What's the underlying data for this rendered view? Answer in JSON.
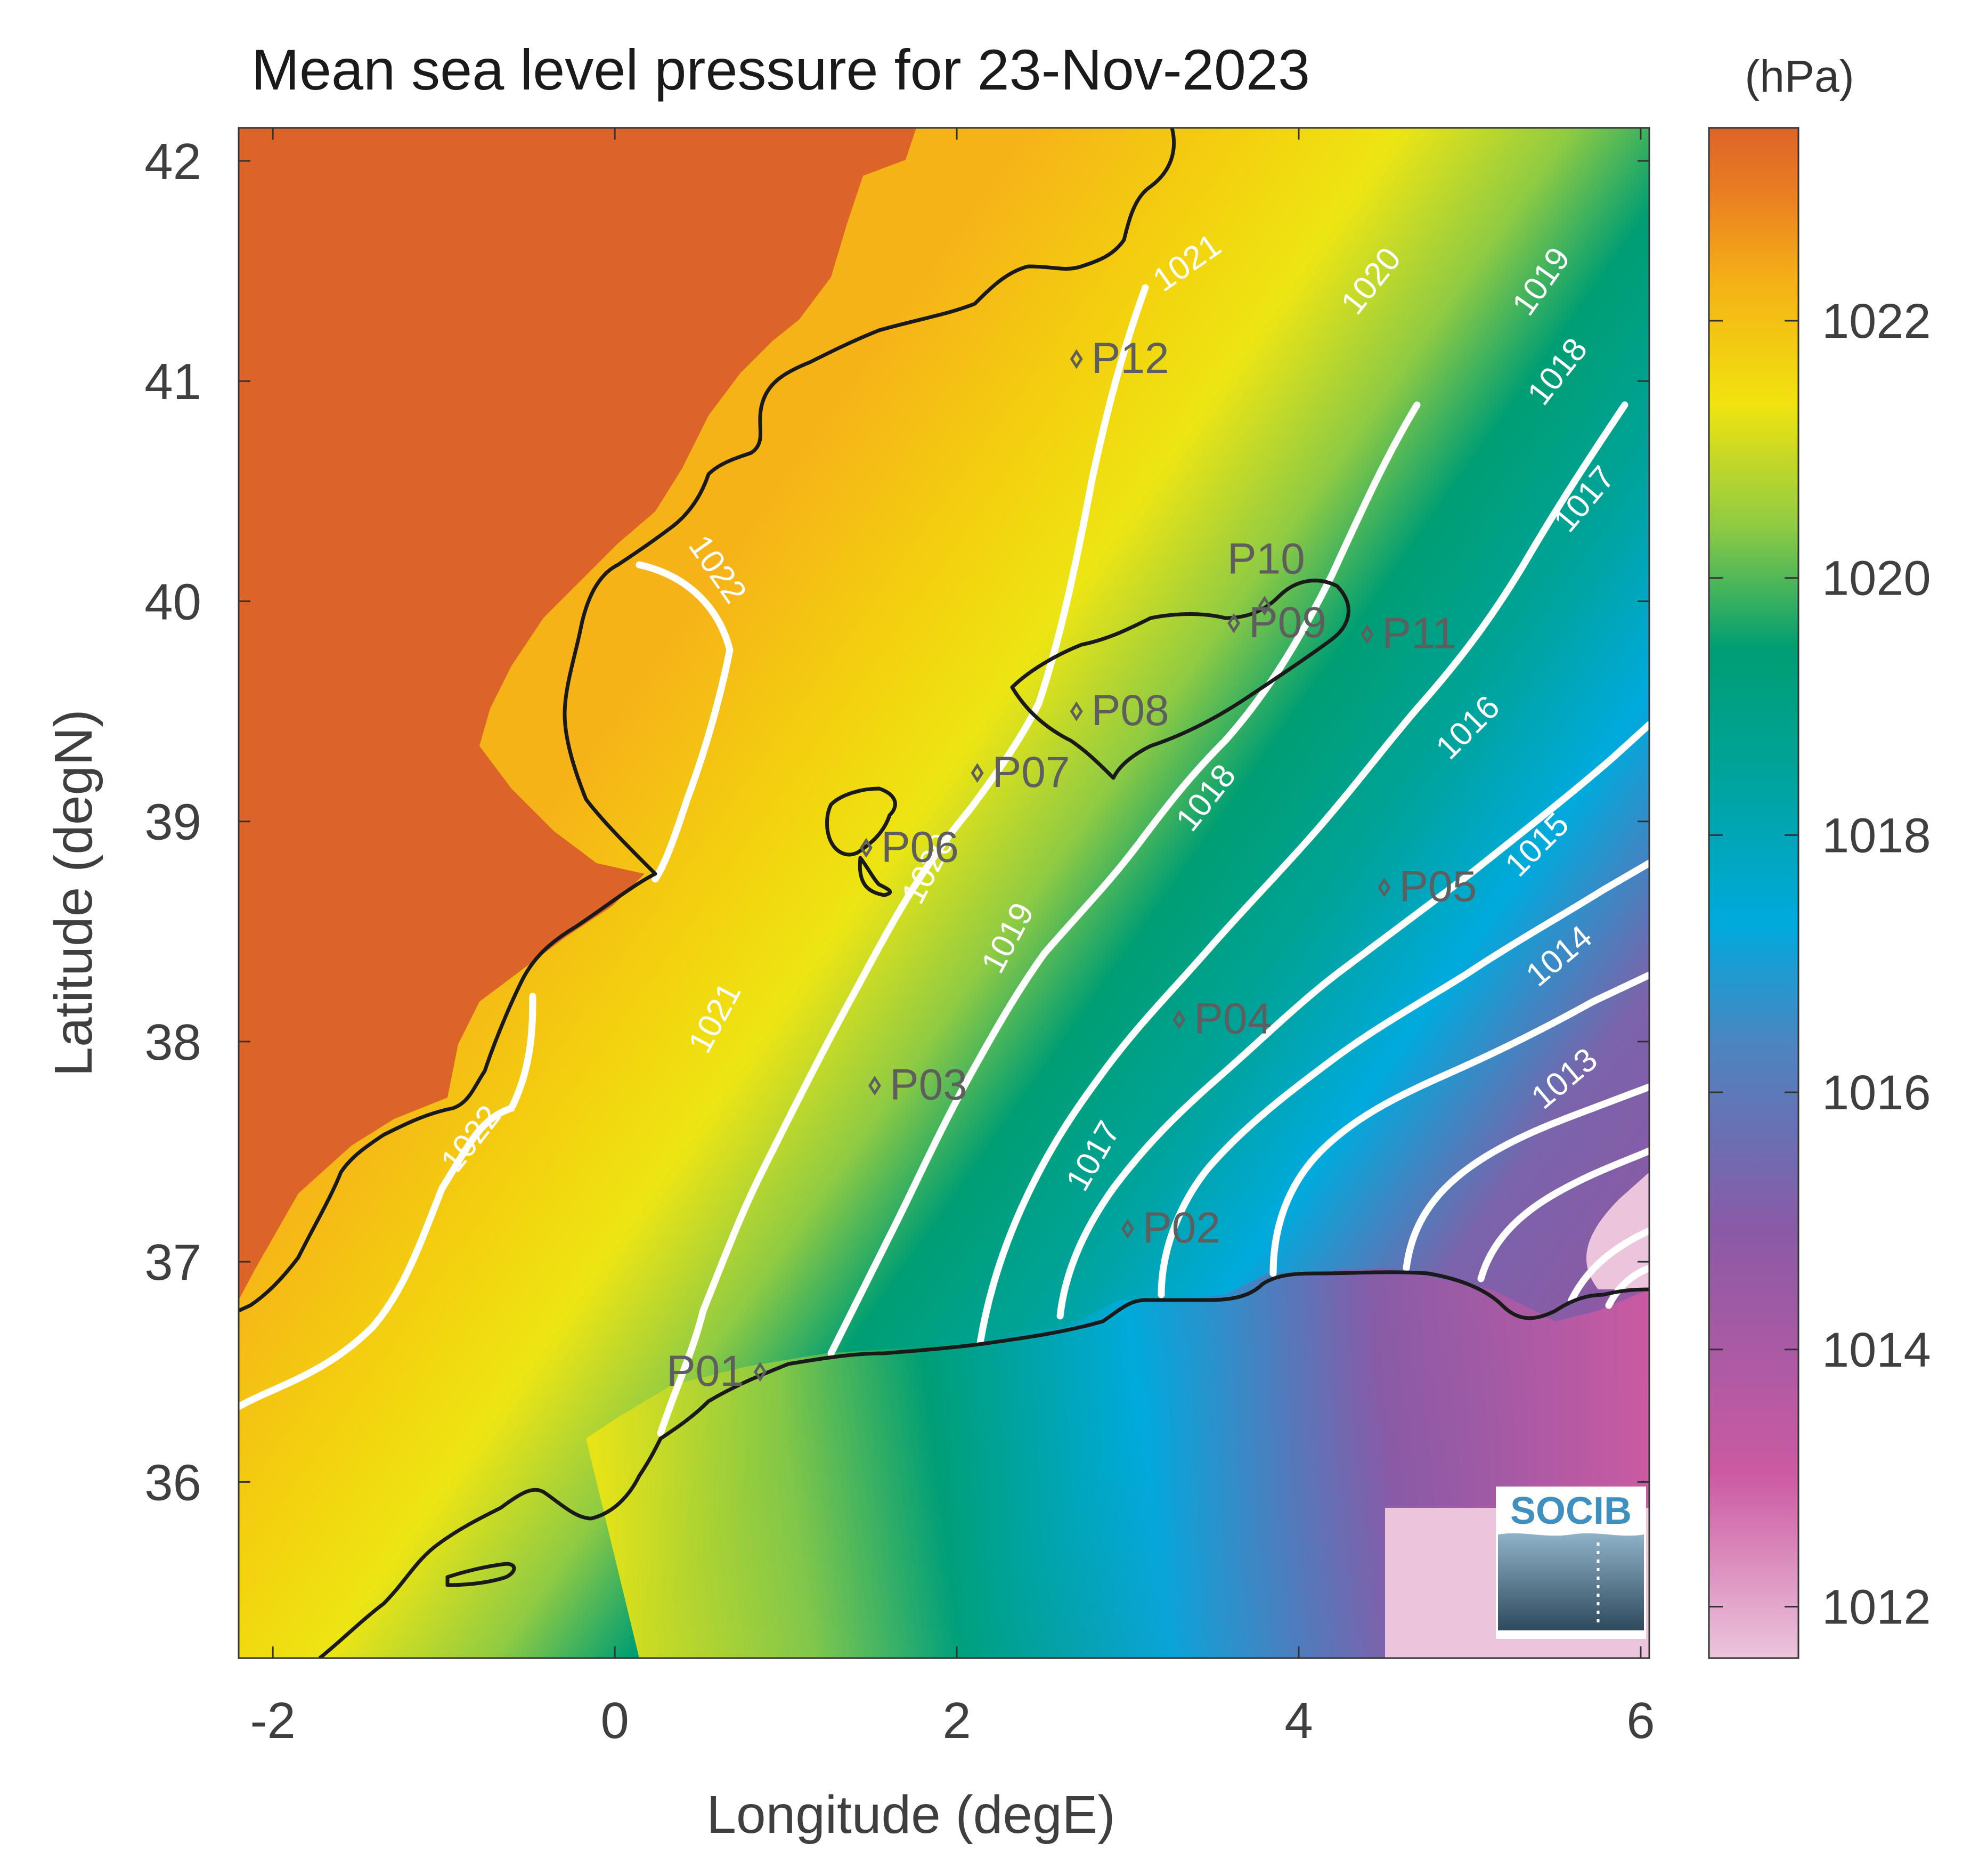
{
  "title": "Mean sea level pressure for 23-Nov-2023",
  "colorbar": {
    "unit": "(hPa)",
    "ticks": [
      {
        "value": 1022,
        "label": "1022"
      },
      {
        "value": 1020,
        "label": "1020"
      },
      {
        "value": 1018,
        "label": "1018"
      },
      {
        "value": 1016,
        "label": "1016"
      },
      {
        "value": 1014,
        "label": "1014"
      },
      {
        "value": 1012,
        "label": "1012"
      }
    ],
    "range": [
      1011.6,
      1023.5
    ],
    "colors": [
      "#ecc5dc",
      "#cc5aa2",
      "#8a5aa6",
      "#00aadd",
      "#009e73",
      "#8fcb43",
      "#f1e30f",
      "#f5b016",
      "#dd6428"
    ]
  },
  "axes": {
    "xlabel": "Longitude (degE)",
    "ylabel": "Latitude (degN)",
    "xlim": [
      -2.2,
      6.05
    ],
    "ylim": [
      35.2,
      42.15
    ],
    "xticks": [
      {
        "value": -2,
        "label": "-2"
      },
      {
        "value": 0,
        "label": "0"
      },
      {
        "value": 2,
        "label": "2"
      },
      {
        "value": 4,
        "label": "4"
      },
      {
        "value": 6,
        "label": "6"
      }
    ],
    "yticks": [
      {
        "value": 42,
        "label": "42"
      },
      {
        "value": 41,
        "label": "41"
      },
      {
        "value": 40,
        "label": "40"
      },
      {
        "value": 39,
        "label": "39"
      },
      {
        "value": 38,
        "label": "38"
      },
      {
        "value": 37,
        "label": "37"
      },
      {
        "value": 36,
        "label": "36"
      }
    ]
  },
  "stations": [
    {
      "id": "P01",
      "lon": 0.85,
      "lat": 36.5
    },
    {
      "id": "P02",
      "lon": 3.0,
      "lat": 37.15
    },
    {
      "id": "P03",
      "lon": 1.52,
      "lat": 37.8
    },
    {
      "id": "P04",
      "lon": 3.3,
      "lat": 38.1
    },
    {
      "id": "P05",
      "lon": 4.5,
      "lat": 38.7
    },
    {
      "id": "P06",
      "lon": 1.47,
      "lat": 38.88
    },
    {
      "id": "P07",
      "lon": 2.12,
      "lat": 39.22
    },
    {
      "id": "P08",
      "lon": 2.7,
      "lat": 39.5
    },
    {
      "id": "P09",
      "lon": 3.62,
      "lat": 39.9
    },
    {
      "id": "P10",
      "lon": 3.8,
      "lat": 39.98
    },
    {
      "id": "P11",
      "lon": 4.4,
      "lat": 39.85
    },
    {
      "id": "P12",
      "lon": 2.7,
      "lat": 41.1
    }
  ],
  "isobar_labels": [
    "1022",
    "1021",
    "1020",
    "1019",
    "1018",
    "1017",
    "1016",
    "1015",
    "1014",
    "1013"
  ],
  "logo_text": "SOCIB"
}
